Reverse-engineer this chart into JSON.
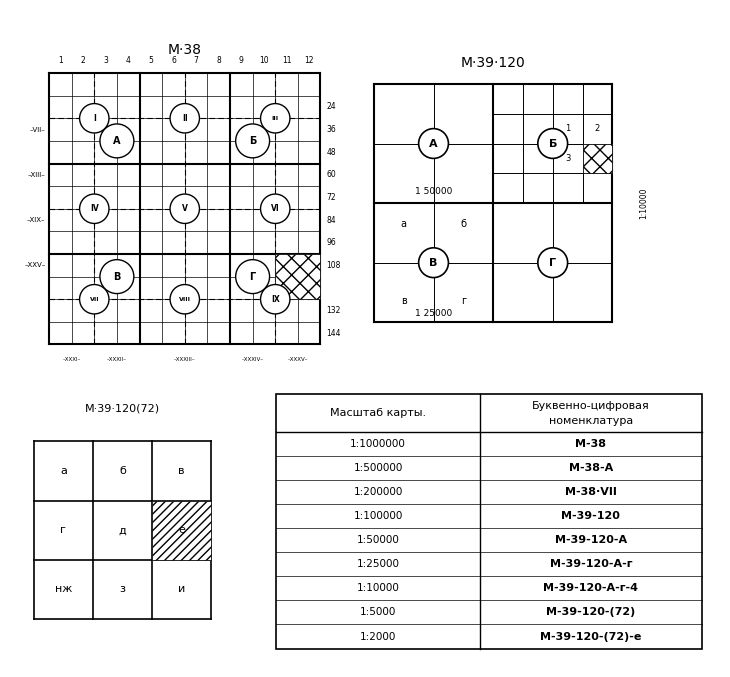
{
  "bg_color": "#ffffff",
  "title1": "M·38",
  "title2": "M·39·120",
  "title3": "M·39·120(72)",
  "table_scales": [
    "1:1000000",
    "1:500000",
    "1:200000",
    "1:100000",
    "1:50000",
    "1:25000",
    "1:10000",
    "1:5000",
    "1:2000"
  ],
  "table_names": [
    "M-38",
    "M-38-A",
    "M-38·VII",
    "M-39-120",
    "M-39-120-A",
    "M-39-120-A-г",
    "M-39-120-A-г-4",
    "M-39-120-(72)",
    "M-39-120-(72)-е"
  ],
  "panel1_col_nums": [
    "1",
    "2",
    "3",
    "4",
    "5",
    "6",
    "7",
    "8",
    "9",
    "10",
    "11",
    "12"
  ],
  "panel1_row_nums_vals": [
    24,
    36,
    48,
    60,
    72,
    84,
    96,
    108,
    132,
    144
  ],
  "panel1_row_nums_y": [
    10,
    9,
    8,
    7,
    6,
    5,
    4,
    3,
    1,
    0
  ],
  "panel1_left_labels": [
    [
      "VII",
      9
    ],
    [
      "XIII",
      7
    ],
    [
      "XIX",
      5
    ],
    [
      "XXV",
      3
    ]
  ],
  "panel1_bottom_labels": [
    [
      "XXXI",
      0.5
    ],
    [
      "XXXII",
      2.5
    ],
    [
      "XXXIII",
      5.5
    ],
    [
      "XXXIV",
      8.5
    ],
    [
      "XXXV",
      10.5
    ]
  ],
  "panel1_roman_circles": [
    [
      "I",
      2,
      10
    ],
    [
      "II",
      6,
      10
    ],
    [
      "III",
      10,
      10
    ],
    [
      "IV",
      2,
      6
    ],
    [
      "V",
      6,
      6
    ],
    [
      "VI",
      10,
      6
    ],
    [
      "VII",
      2,
      2
    ],
    [
      "VIII",
      6,
      2
    ],
    [
      "IX",
      10,
      2
    ]
  ],
  "panel1_cyrillic_circles": [
    [
      "A",
      3,
      9
    ],
    [
      "Б",
      9,
      9
    ],
    [
      "В",
      3,
      3
    ],
    [
      "Г",
      9,
      3
    ]
  ]
}
